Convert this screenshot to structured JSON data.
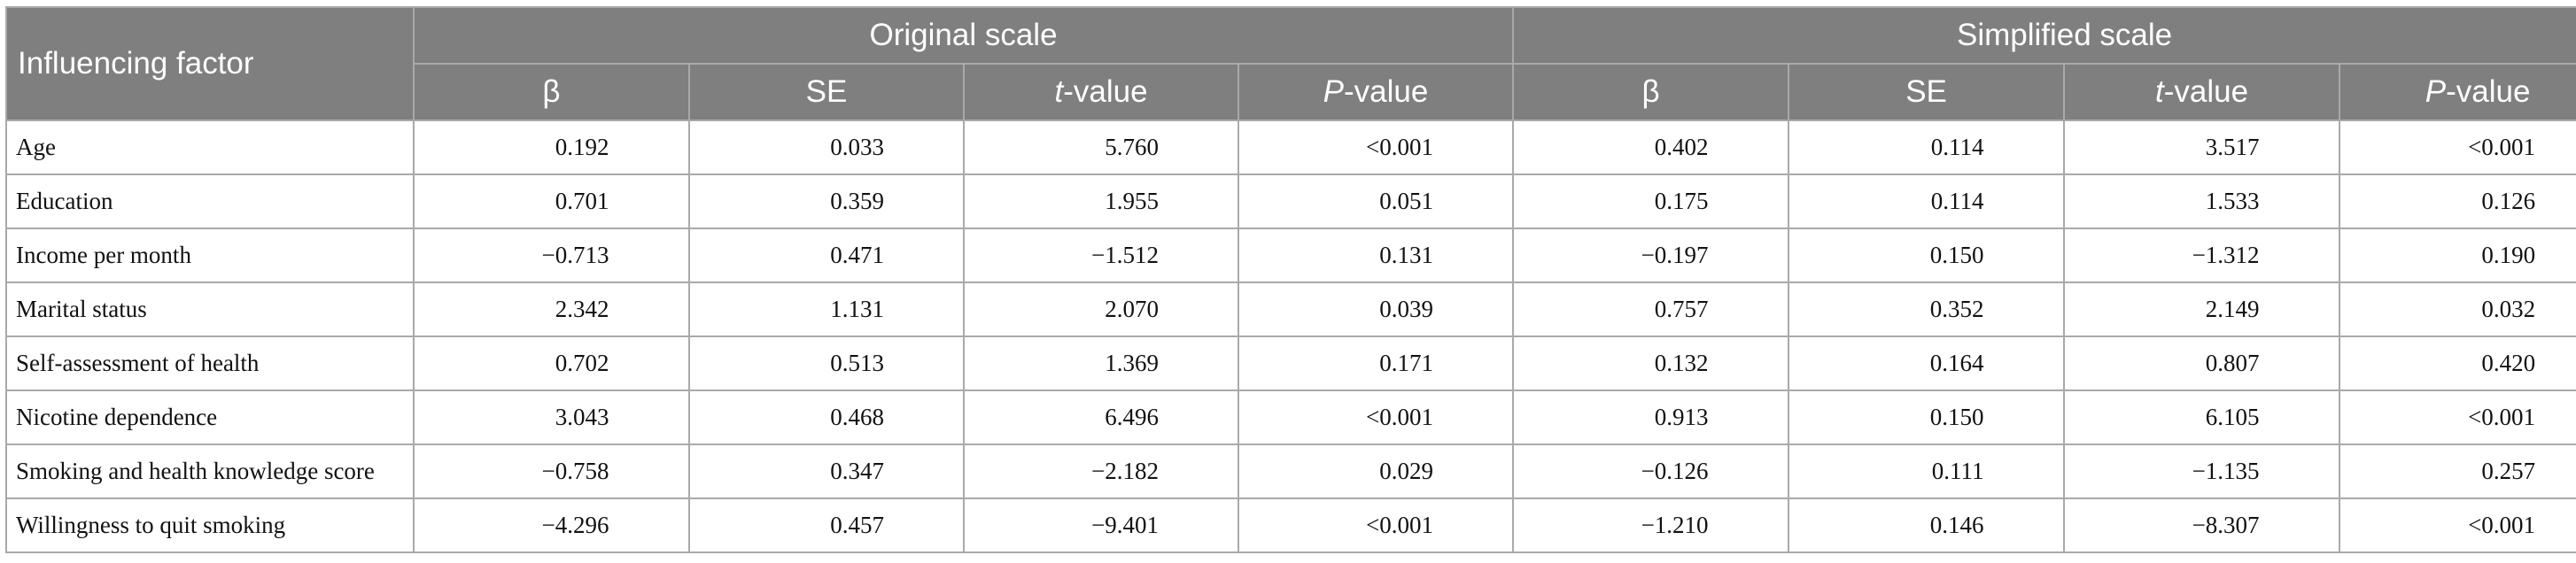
{
  "header": {
    "factor_label": "Influencing factor",
    "groups": [
      "Original scale",
      "Simplified scale"
    ],
    "columns": [
      {
        "italic": "",
        "rest": "β"
      },
      {
        "italic": "",
        "rest": "SE"
      },
      {
        "italic": "t",
        "rest": "-value"
      },
      {
        "italic": "P",
        "rest": "-value"
      },
      {
        "italic": "",
        "rest": "β"
      },
      {
        "italic": "",
        "rest": "SE"
      },
      {
        "italic": "t",
        "rest": "-value"
      },
      {
        "italic": "P",
        "rest": "-value"
      }
    ]
  },
  "rows": [
    {
      "factor": "Age",
      "values": [
        "0.192",
        "0.033",
        "5.760",
        "<0.001",
        "0.402",
        "0.114",
        "3.517",
        "<0.001"
      ]
    },
    {
      "factor": "Education",
      "values": [
        "0.701",
        "0.359",
        "1.955",
        "0.051",
        "0.175",
        "0.114",
        "1.533",
        "0.126"
      ]
    },
    {
      "factor": "Income per month",
      "values": [
        "−0.713",
        "0.471",
        "−1.512",
        "0.131",
        "−0.197",
        "0.150",
        "−1.312",
        "0.190"
      ]
    },
    {
      "factor": "Marital status",
      "values": [
        "2.342",
        "1.131",
        "2.070",
        "0.039",
        "0.757",
        "0.352",
        "2.149",
        "0.032"
      ]
    },
    {
      "factor": "Self-assessment of health",
      "values": [
        "0.702",
        "0.513",
        "1.369",
        "0.171",
        "0.132",
        "0.164",
        "0.807",
        "0.420"
      ]
    },
    {
      "factor": "Nicotine dependence",
      "values": [
        "3.043",
        "0.468",
        "6.496",
        "<0.001",
        "0.913",
        "0.150",
        "6.105",
        "<0.001"
      ]
    },
    {
      "factor": "Smoking and health knowledge score",
      "values": [
        "−0.758",
        "0.347",
        "−2.182",
        "0.029",
        "−0.126",
        "0.111",
        "−1.135",
        "0.257"
      ]
    },
    {
      "factor": "Willingness to quit smoking",
      "values": [
        "−4.296",
        "0.457",
        "−9.401",
        "<0.001",
        "−1.210",
        "0.146",
        "−8.307",
        "<0.001"
      ]
    }
  ]
}
